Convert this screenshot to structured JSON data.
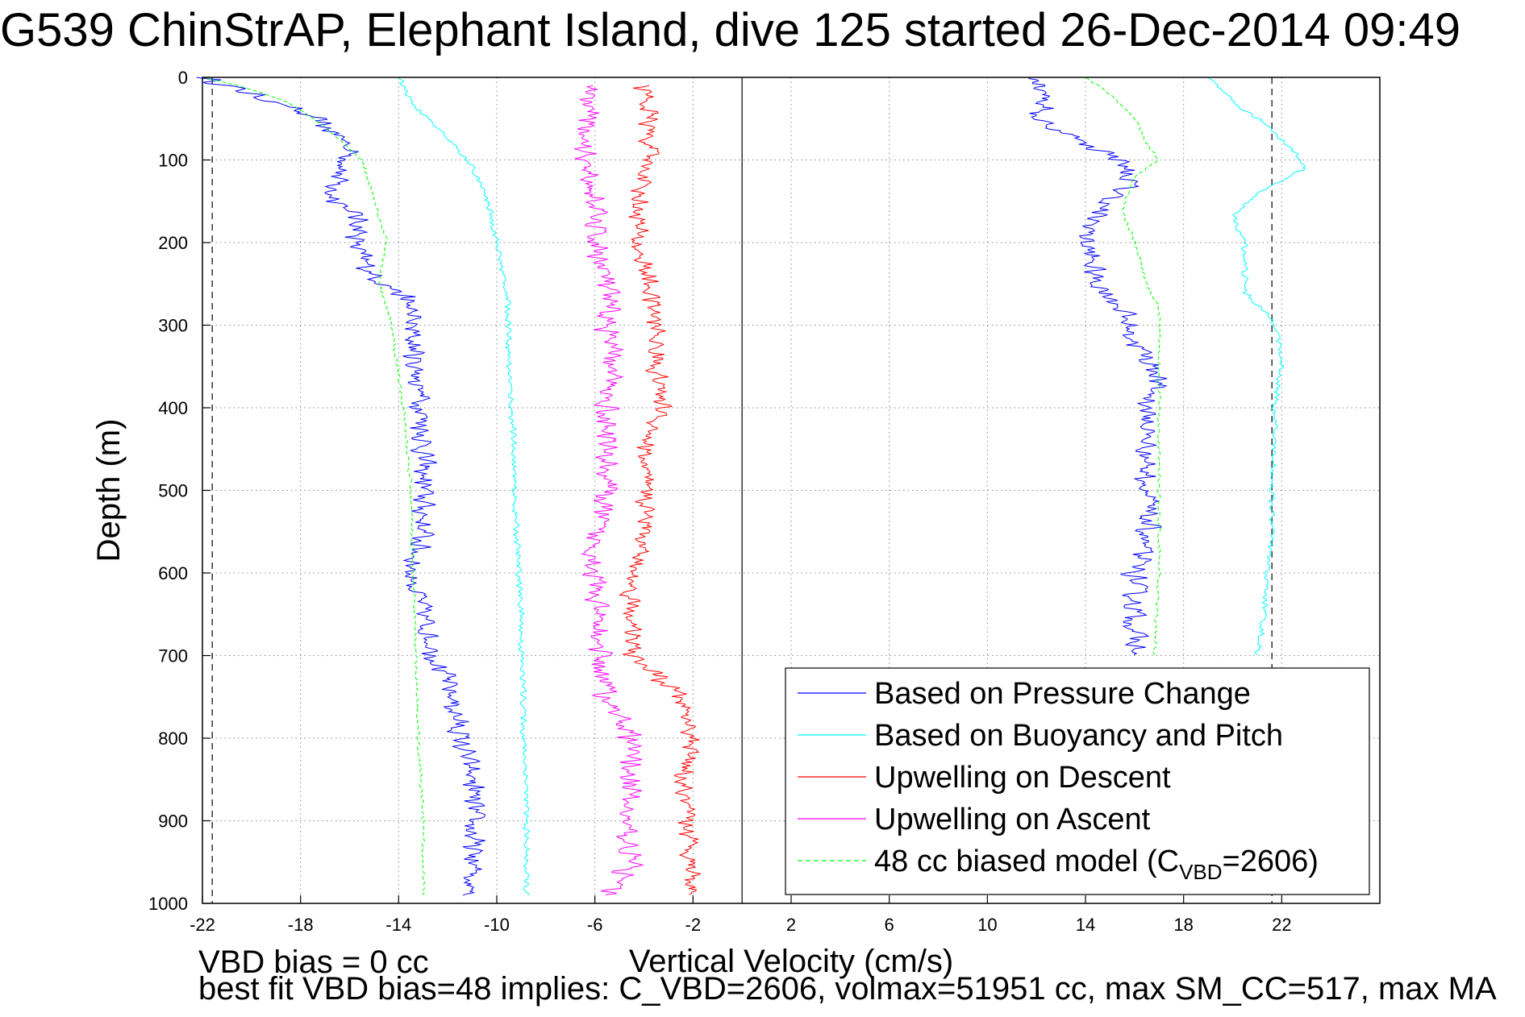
{
  "title": "G539 ChinStrAP, Elephant Island, dive 125 started 26-Dec-2014 09:49",
  "footer": {
    "line1": "VBD bias = 0 cc",
    "line2": "best fit VBD bias=48 implies: C_VBD=2606, volmax=51951 cc, max SM_CC=517, max MA"
  },
  "chart_data": {
    "type": "line",
    "xlabel": "Vertical Velocity (cm/s)",
    "ylabel": "Depth (m)",
    "xlim": [
      -22,
      26
    ],
    "ylim": [
      1000,
      0
    ],
    "xticks": [
      -22,
      -18,
      -14,
      -10,
      -6,
      -2,
      2,
      6,
      10,
      14,
      18,
      22
    ],
    "yticks": [
      0,
      100,
      200,
      300,
      400,
      500,
      600,
      700,
      800,
      900,
      1000
    ],
    "grid": true,
    "legend_position": "bottom-right",
    "reference_lines": {
      "solid_x": 0,
      "dashed_x": [
        -21.6,
        21.6
      ]
    },
    "series": [
      {
        "name": "Based on Pressure Change",
        "color": "#0000ff",
        "style": "solid",
        "phase": "descent",
        "depth": [
          0,
          10,
          30,
          50,
          80,
          100,
          120,
          140,
          160,
          180,
          200,
          220,
          240,
          260,
          280,
          300,
          350,
          400,
          450,
          500,
          550,
          600,
          650,
          700,
          750,
          800,
          850,
          900,
          950,
          990
        ],
        "values": [
          -22,
          -21,
          -19,
          -17.5,
          -16,
          -16,
          -16.5,
          -16.8,
          -16,
          -15.5,
          -15.8,
          -15.5,
          -15,
          -14,
          -13.5,
          -13.5,
          -13.3,
          -13.0,
          -13,
          -13,
          -13,
          -13.5,
          -13,
          -12.5,
          -11.8,
          -11.5,
          -11,
          -11,
          -11,
          -11
        ]
      },
      {
        "name": "Based on Pressure Change",
        "color": "#0000ff",
        "style": "solid",
        "phase": "ascent",
        "depth": [
          0,
          20,
          50,
          80,
          100,
          130,
          160,
          200,
          250,
          280,
          320,
          360,
          400,
          450,
          500,
          550,
          600,
          650,
          700
        ],
        "values": [
          12,
          12.5,
          12,
          14,
          15.5,
          15.8,
          14.5,
          14,
          14.5,
          15.5,
          16,
          17,
          16.5,
          16.5,
          16.5,
          16.5,
          16,
          16,
          16
        ]
      },
      {
        "name": "Based on Buoyancy and Pitch",
        "color": "#00ffff",
        "style": "solid",
        "phase": "descent",
        "depth": [
          0,
          30,
          60,
          90,
          110,
          140,
          170,
          200,
          230,
          260,
          300,
          350,
          400,
          450,
          500,
          550,
          600,
          650,
          700,
          750,
          800,
          850,
          900,
          950,
          990
        ],
        "values": [
          -14,
          -13.5,
          -12.5,
          -11.5,
          -11,
          -10.5,
          -10.2,
          -10,
          -9.8,
          -9.6,
          -9.5,
          -9.5,
          -9.4,
          -9.3,
          -9.3,
          -9.2,
          -9.1,
          -9.0,
          -9.0,
          -8.9,
          -8.9,
          -8.8,
          -8.8,
          -8.8,
          -8.8
        ]
      },
      {
        "name": "Based on Buoyancy and Pitch",
        "color": "#00ffff",
        "style": "solid",
        "phase": "ascent",
        "depth": [
          0,
          30,
          60,
          90,
          110,
          140,
          170,
          200,
          230,
          260,
          300,
          350,
          400,
          450,
          500,
          550,
          600,
          650,
          700
        ],
        "values": [
          19,
          20,
          21.5,
          22.5,
          23,
          21,
          20,
          20.5,
          20.5,
          20.5,
          21.8,
          22,
          21.7,
          21.7,
          21.6,
          21.6,
          21.4,
          21.3,
          21
        ]
      },
      {
        "name": "Upwelling on Descent",
        "color": "#ff0000",
        "style": "solid",
        "depth": [
          10,
          50,
          100,
          150,
          200,
          250,
          300,
          350,
          400,
          450,
          500,
          550,
          600,
          650,
          700,
          750,
          800,
          850,
          900,
          950,
          990
        ],
        "values": [
          -4,
          -3.8,
          -3.8,
          -4.2,
          -4.3,
          -3.8,
          -3.5,
          -3.5,
          -3.2,
          -4,
          -4,
          -3.8,
          -4.5,
          -4.5,
          -4.5,
          -2.5,
          -2,
          -2.5,
          -2.3,
          -2,
          -2
        ]
      },
      {
        "name": "Upwelling on Ascent",
        "color": "#ff00ff",
        "style": "solid",
        "depth": [
          10,
          50,
          100,
          150,
          200,
          250,
          300,
          350,
          400,
          450,
          500,
          550,
          600,
          650,
          700,
          750,
          800,
          850,
          900,
          950,
          990
        ],
        "values": [
          -6,
          -6.2,
          -6.5,
          -6,
          -6,
          -5.5,
          -5.5,
          -5.3,
          -5.5,
          -5.5,
          -5.5,
          -6,
          -6,
          -6,
          -5.8,
          -5.5,
          -4.5,
          -4.5,
          -4.8,
          -4.5,
          -5.5
        ]
      },
      {
        "name": "48 cc biased model (C_VBD=2606)",
        "legend_main": "48 cc biased model (C",
        "legend_sub": "VBD",
        "legend_tail": "=2606)",
        "color": "#00ff00",
        "style": "dashed",
        "phase": "descent",
        "depth": [
          0,
          10,
          30,
          60,
          100,
          150,
          200,
          250,
          300,
          400,
          500,
          600,
          700,
          800,
          900,
          990
        ],
        "values": [
          -22,
          -20.5,
          -18.5,
          -17,
          -15.5,
          -15,
          -14.5,
          -14.8,
          -14.3,
          -13.8,
          -13.5,
          -13.4,
          -13.3,
          -13.2,
          -13,
          -13
        ]
      },
      {
        "name": "48 cc biased model (C_VBD=2606)",
        "color": "#00ff00",
        "style": "dashed",
        "phase": "ascent",
        "depth": [
          0,
          20,
          50,
          80,
          100,
          120,
          160,
          200,
          250,
          280,
          300,
          400,
          500,
          600,
          700
        ],
        "values": [
          14,
          15,
          16,
          16.5,
          17,
          16,
          15.5,
          16,
          16.5,
          17,
          17,
          17,
          17,
          17,
          16.8
        ]
      }
    ]
  }
}
